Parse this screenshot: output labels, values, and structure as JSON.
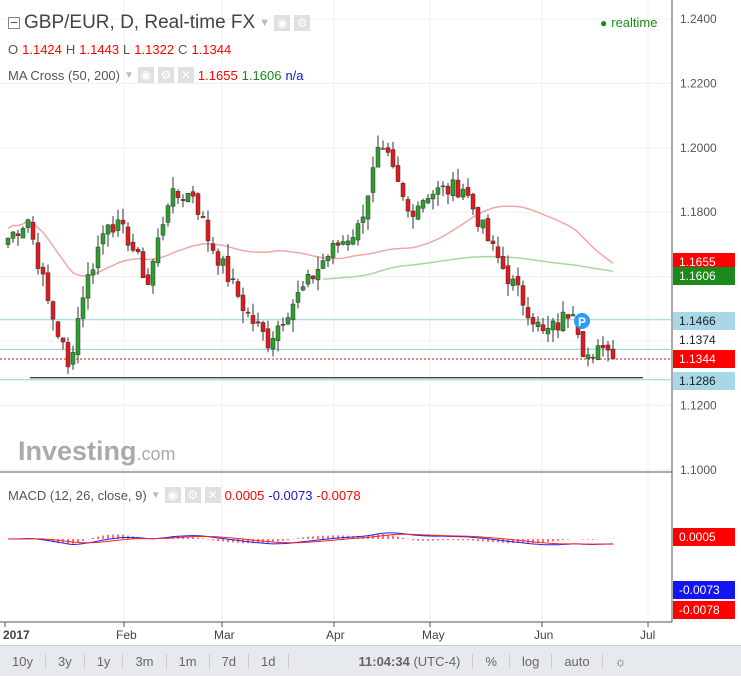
{
  "header": {
    "title": "GBP/EUR, D, Real-time FX",
    "realtime": "realtime",
    "ohlc": {
      "o_label": "O",
      "o": "1.1424",
      "h_label": "H",
      "h": "1.1443",
      "l_label": "L",
      "l": "1.1322",
      "c_label": "C",
      "c": "1.1344"
    },
    "ma": {
      "label": "MA Cross (50, 200)",
      "v1": "1.1655",
      "v2": "1.1606",
      "v3": "n/a"
    },
    "macd": {
      "label": "MACD (12, 26, close, 9)",
      "v1": "0.0005",
      "v2": "-0.0073",
      "v3": "-0.0078"
    }
  },
  "watermark": {
    "brand": "Investing",
    "suffix": ".com"
  },
  "toolbar": {
    "items": [
      "10y",
      "3y",
      "1y",
      "3m",
      "1m",
      "7d",
      "1d"
    ],
    "time": "11:04:34",
    "tz": "(UTC-4)",
    "pct": "%",
    "log": "log",
    "auto": "auto"
  },
  "colors": {
    "up": "#2ca02c",
    "down": "#e31a1c",
    "ma50": "#f4a6a6",
    "ma200": "#a8d8a0",
    "macd": "#1f1fff",
    "signal": "#ff2020"
  },
  "chart_data": {
    "type": "candlestick",
    "symbol": "GBP/EUR",
    "ylim": [
      1.1,
      1.24
    ],
    "y_ticks": [
      "1.2400",
      "1.2200",
      "1.2000",
      "1.1800",
      "1.1466",
      "1.1374",
      "1.1286",
      "1.1200",
      "1.1000"
    ],
    "x_ticks": [
      "2017",
      "Feb",
      "Mar",
      "Apr",
      "May",
      "Jun",
      "Jul"
    ],
    "close_keypoints": [
      [
        0,
        1.172
      ],
      [
        4,
        1.178
      ],
      [
        8,
        1.152
      ],
      [
        11,
        1.138
      ],
      [
        12,
        1.131
      ],
      [
        15,
        1.155
      ],
      [
        20,
        1.178
      ],
      [
        24,
        1.172
      ],
      [
        28,
        1.158
      ],
      [
        32,
        1.184
      ],
      [
        37,
        1.186
      ],
      [
        40,
        1.172
      ],
      [
        44,
        1.16
      ],
      [
        48,
        1.148
      ],
      [
        52,
        1.14
      ],
      [
        56,
        1.15
      ],
      [
        60,
        1.158
      ],
      [
        63,
        1.165
      ],
      [
        66,
        1.17
      ],
      [
        70,
        1.175
      ],
      [
        74,
        1.198
      ],
      [
        76,
        1.196
      ],
      [
        80,
        1.18
      ],
      [
        84,
        1.186
      ],
      [
        88,
        1.187
      ],
      [
        91,
        1.188
      ],
      [
        94,
        1.178
      ],
      [
        97,
        1.168
      ],
      [
        100,
        1.16
      ],
      [
        104,
        1.15
      ],
      [
        107,
        1.142
      ],
      [
        110,
        1.145
      ],
      [
        113,
        1.151
      ],
      [
        115,
        1.138
      ],
      [
        117,
        1.133
      ],
      [
        119,
        1.14
      ],
      [
        121,
        1.1344
      ]
    ],
    "price_labels": [
      {
        "text": "1.1655",
        "type": "ma50"
      },
      {
        "text": "1.1606",
        "type": "ma200"
      },
      {
        "text": "1.1466",
        "type": "hline"
      },
      {
        "text": "1.1374",
        "type": "hline"
      },
      {
        "text": "1.1344",
        "type": "last"
      },
      {
        "text": "1.1286",
        "type": "hline"
      }
    ],
    "horizontal_lines": [
      1.1466,
      1.1374,
      1.1286
    ],
    "macd_labels": [
      {
        "text": "0.0005",
        "type": "hist"
      },
      {
        "text": "-0.0073",
        "type": "macd"
      },
      {
        "text": "-0.0078",
        "type": "signal"
      }
    ]
  }
}
